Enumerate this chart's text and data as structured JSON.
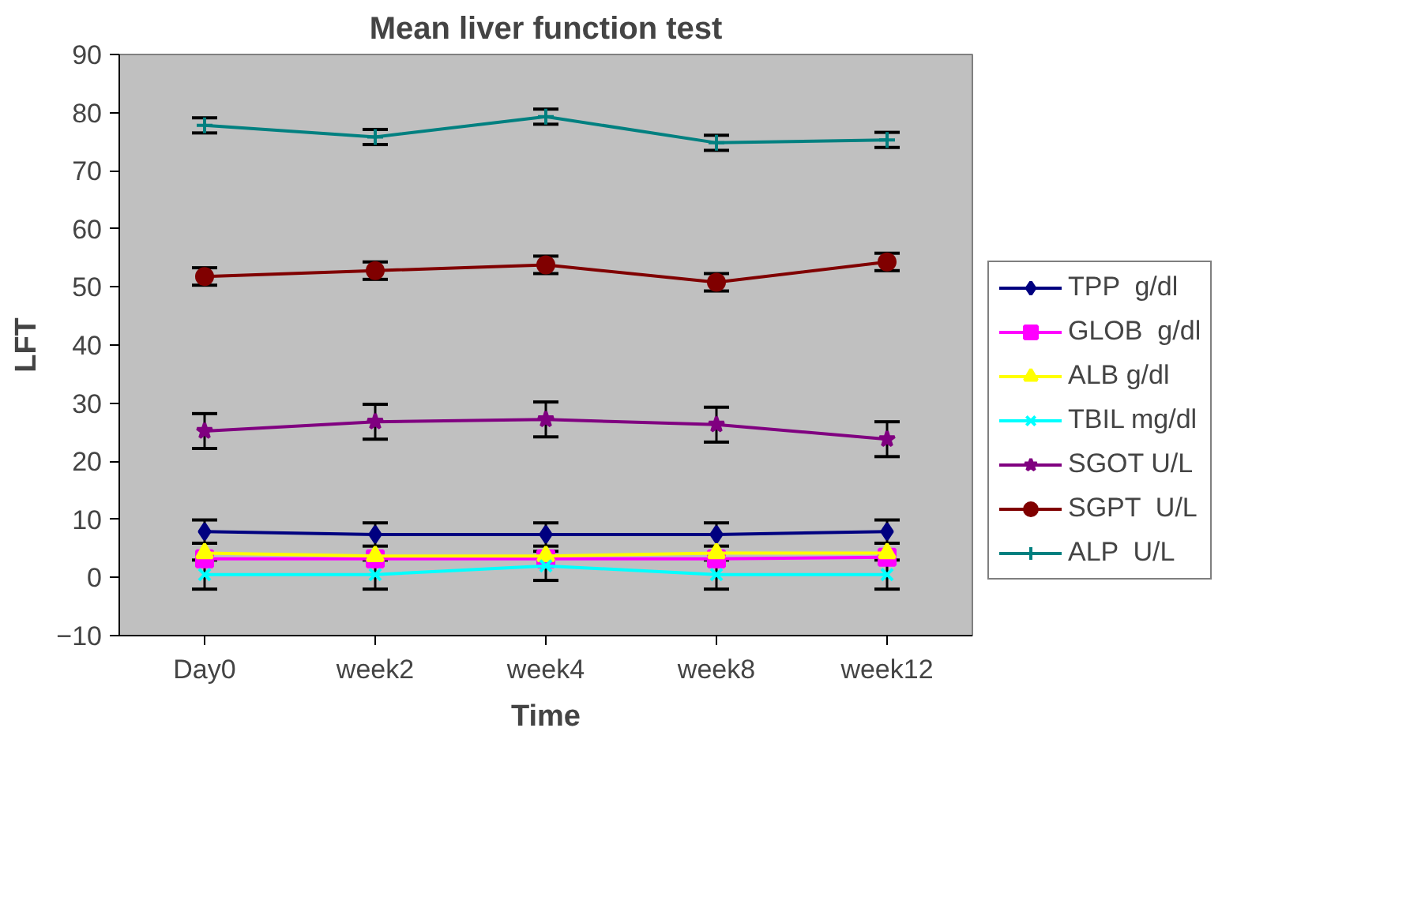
{
  "chart_data": {
    "type": "line",
    "title": "Mean liver function test",
    "xlabel": "Time",
    "ylabel": "LFT",
    "categories": [
      "Day0",
      "week2",
      "week4",
      "week8",
      "week12"
    ],
    "ylim": [
      -10,
      90
    ],
    "yticks": [
      -10,
      0,
      10,
      20,
      30,
      40,
      50,
      60,
      70,
      80,
      90
    ],
    "grid": false,
    "legend": "right",
    "series": [
      {
        "name": "TPP  g/dl",
        "color": "#000080",
        "marker": "diamond",
        "values": [
          7.9,
          7.4,
          7.4,
          7.4,
          7.9
        ],
        "errors": [
          2,
          2,
          2,
          2,
          2
        ]
      },
      {
        "name": "GLOB  g/dl",
        "color": "#ff00ff",
        "marker": "square",
        "values": [
          3.2,
          3.2,
          3.2,
          3.2,
          3.5
        ]
      },
      {
        "name": "ALB g/dl",
        "color": "#ffff00",
        "marker": "triangle",
        "values": [
          4.2,
          3.7,
          3.7,
          4.2,
          4.2
        ]
      },
      {
        "name": "TBIL mg/dl",
        "color": "#00ffff",
        "marker": "x",
        "values": [
          0.5,
          0.5,
          2,
          0.5,
          0.5
        ],
        "errors": [
          2.5,
          2.5,
          2.5,
          2.5,
          2.5
        ]
      },
      {
        "name": "SGOT U/L",
        "color": "#800080",
        "marker": "star",
        "values": [
          25.2,
          26.8,
          27.2,
          26.3,
          23.8
        ],
        "errors": [
          3,
          3,
          3,
          3,
          3
        ]
      },
      {
        "name": "SGPT  U/L",
        "color": "#800000",
        "marker": "circle",
        "values": [
          51.8,
          52.8,
          53.8,
          50.8,
          54.3
        ],
        "errors": [
          1.5,
          1.5,
          1.5,
          1.5,
          1.5
        ]
      },
      {
        "name": "ALP  U/L",
        "color": "#008080",
        "marker": "cross",
        "values": [
          77.8,
          75.8,
          79.3,
          74.8,
          75.3
        ],
        "errors": [
          1.3,
          1.3,
          1.3,
          1.3,
          1.3
        ]
      }
    ]
  }
}
